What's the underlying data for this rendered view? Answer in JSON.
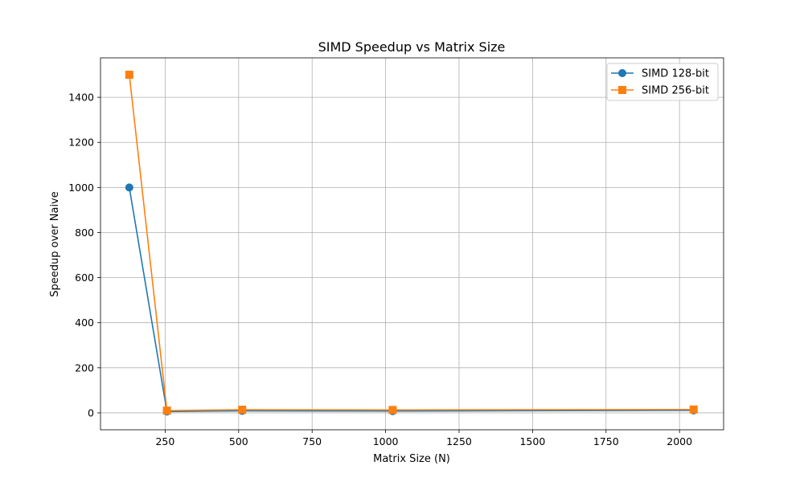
{
  "chart_data": {
    "type": "line",
    "title": "SIMD Speedup vs Matrix Size",
    "xlabel": "Matrix Size (N)",
    "ylabel": "Speedup over Naive",
    "xlim": [
      30,
      2150
    ],
    "ylim": [
      -75,
      1575
    ],
    "xticks": [
      250,
      500,
      750,
      1000,
      1250,
      1500,
      1750,
      2000
    ],
    "yticks": [
      0,
      200,
      400,
      600,
      800,
      1000,
      1200,
      1400
    ],
    "grid": true,
    "legend_position": "top-right",
    "x": [
      128,
      256,
      512,
      1024,
      2048
    ],
    "series": [
      {
        "name": "SIMD 128-bit",
        "values": [
          1000,
          6,
          9,
          8,
          11
        ],
        "color": "#1f77b4",
        "marker": "circle"
      },
      {
        "name": "SIMD 256-bit",
        "values": [
          1500,
          10,
          14,
          13,
          15
        ],
        "color": "#ff7f0e",
        "marker": "square"
      }
    ]
  }
}
